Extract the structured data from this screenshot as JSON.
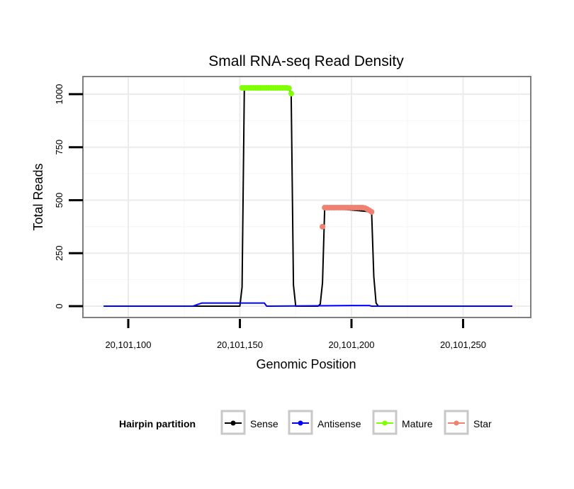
{
  "chart_data": {
    "type": "line",
    "title": "Small RNA-seq Read Density",
    "xlabel": "Genomic Position",
    "ylabel": "Total Reads",
    "xlim": [
      20101080,
      20101280
    ],
    "ylim": [
      -50,
      1080
    ],
    "x_ticks": [
      20101100,
      20101150,
      20101200,
      20101250
    ],
    "x_tick_labels": [
      "20,101,100",
      "20,101,150",
      "20,101,200",
      "20,101,250"
    ],
    "y_ticks": [
      0,
      250,
      500,
      750,
      1000
    ],
    "y_tick_labels": [
      "0",
      "250",
      "500",
      "750",
      "1000"
    ],
    "grid": true,
    "legend_position": "bottom",
    "legend": {
      "title": "Hairpin partition",
      "entries": [
        {
          "label": "Sense",
          "color": "#000000"
        },
        {
          "label": "Antisense",
          "color": "#0000ff"
        },
        {
          "label": "Mature",
          "color": "#7fff00"
        },
        {
          "label": "Star",
          "color": "#f08070"
        }
      ]
    },
    "series": [
      {
        "name": "Sense",
        "color": "#000000",
        "x": [
          20101089,
          20101150,
          20101151,
          20101152,
          20101172,
          20101173,
          20101174,
          20101175,
          20101185,
          20101186,
          20101187,
          20101188,
          20101209,
          20101210,
          20101211,
          20101212,
          20101272
        ],
        "y": [
          0,
          0,
          90,
          1030,
          1030,
          1000,
          100,
          0,
          0,
          10,
          110,
          465,
          445,
          140,
          15,
          0,
          0
        ]
      },
      {
        "name": "Antisense",
        "color": "#0000ff",
        "x": [
          20101089,
          20101129,
          20101131,
          20101133,
          20101160,
          20101161,
          20101162,
          20101200,
          20101208,
          20101209,
          20101272
        ],
        "y": [
          0,
          0,
          8,
          15,
          15,
          15,
          0,
          3,
          3,
          0,
          0
        ]
      },
      {
        "name": "Mature",
        "color": "#7fff00",
        "points_x": [
          20101151,
          20101152,
          20101153,
          20101154,
          20101155,
          20101156,
          20101157,
          20101158,
          20101159,
          20101160,
          20101161,
          20101162,
          20101163,
          20101164,
          20101165,
          20101166,
          20101167,
          20101168,
          20101169,
          20101170,
          20101171,
          20101172,
          20101173
        ],
        "points_y": [
          1030,
          1030,
          1030,
          1030,
          1030,
          1030,
          1030,
          1030,
          1030,
          1030,
          1030,
          1030,
          1030,
          1030,
          1030,
          1030,
          1030,
          1030,
          1030,
          1030,
          1030,
          1028,
          1003
        ]
      },
      {
        "name": "Star",
        "color": "#f08070",
        "points_x": [
          20101187,
          20101188,
          20101189,
          20101190,
          20101191,
          20101192,
          20101193,
          20101194,
          20101195,
          20101196,
          20101197,
          20101198,
          20101199,
          20101200,
          20101201,
          20101202,
          20101203,
          20101204,
          20101205,
          20101206,
          20101207,
          20101208,
          20101209
        ],
        "points_y": [
          375,
          465,
          465,
          465,
          465,
          465,
          465,
          465,
          465,
          465,
          465,
          465,
          465,
          465,
          465,
          465,
          465,
          465,
          465,
          463,
          458,
          452,
          445
        ]
      }
    ]
  }
}
